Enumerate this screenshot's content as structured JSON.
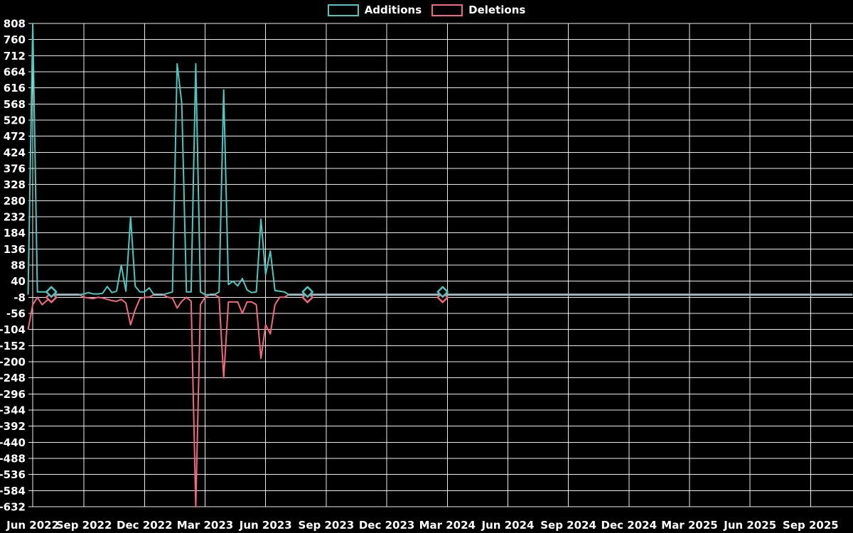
{
  "chart_data": {
    "type": "line",
    "title": "",
    "legend_position": "top",
    "grid": true,
    "grid_color": "rgba(255,255,255,0.92)",
    "overlap_line_color": "#9eb6bd",
    "background_color": "#000000",
    "y_axis": {
      "max": 808,
      "min": -632,
      "tick_step": 48,
      "tick_labels": [
        808,
        760,
        712,
        664,
        616,
        568,
        520,
        472,
        424,
        376,
        328,
        280,
        232,
        184,
        136,
        88,
        40,
        -8,
        -56,
        -104,
        -152,
        -200,
        -248,
        -296,
        -344,
        -392,
        -440,
        -488,
        -536,
        -584,
        -632
      ]
    },
    "x_axis": {
      "labels": [
        "Jun 2022",
        "Sep 2022",
        "Dec 2022",
        "Mar 2023",
        "Jun 2023",
        "Sep 2023",
        "Dec 2023",
        "Mar 2024",
        "Jun 2024",
        "Sep 2024",
        "Dec 2024",
        "Mar 2025",
        "Jun 2025",
        "Sep 2025"
      ],
      "label_weeks": [
        1,
        12,
        25,
        38,
        51,
        64,
        77,
        90,
        103,
        116,
        129,
        142,
        155,
        168
      ],
      "total_weeks": 178,
      "unit": "week"
    },
    "series": [
      {
        "name": "Additions",
        "color": "#4cc8c0"
      },
      {
        "name": "Deletions",
        "color": "#f4687f"
      }
    ],
    "sparse_weekly_values": {
      "0": [
        0,
        -104
      ],
      "1": [
        808,
        -30
      ],
      "2": [
        8,
        -8
      ],
      "3": [
        8,
        -30
      ],
      "4": [
        8,
        -18
      ],
      "5": [
        8,
        -8
      ],
      "12": [
        2,
        -8
      ],
      "13": [
        6,
        -10
      ],
      "14": [
        2,
        -12
      ],
      "15": [
        2,
        -8
      ],
      "16": [
        4,
        -10
      ],
      "17": [
        24,
        -14
      ],
      "18": [
        6,
        -18
      ],
      "19": [
        10,
        -20
      ],
      "20": [
        88,
        -14
      ],
      "21": [
        10,
        -25
      ],
      "22": [
        232,
        -90
      ],
      "23": [
        25,
        -45
      ],
      "24": [
        8,
        -12
      ],
      "25": [
        8,
        -8
      ],
      "26": [
        20,
        -8
      ],
      "30": [
        4,
        -8
      ],
      "31": [
        8,
        -10
      ],
      "32": [
        688,
        -40
      ],
      "33": [
        570,
        -20
      ],
      "34": [
        8,
        -8
      ],
      "35": [
        8,
        -20
      ],
      "36": [
        688,
        -632
      ],
      "37": [
        8,
        -30
      ],
      "38": [
        0,
        -8
      ],
      "41": [
        8,
        -8
      ],
      "42": [
        610,
        -248
      ],
      "43": [
        30,
        -22
      ],
      "44": [
        40,
        -22
      ],
      "45": [
        26,
        -22
      ],
      "46": [
        48,
        -56
      ],
      "47": [
        14,
        -22
      ],
      "48": [
        6,
        -22
      ],
      "49": [
        8,
        -30
      ],
      "50": [
        225,
        -190
      ],
      "51": [
        60,
        -90
      ],
      "52": [
        130,
        -117
      ],
      "53": [
        12,
        -30
      ],
      "54": [
        10,
        -8
      ],
      "55": [
        8,
        -8
      ]
    },
    "markers": [
      {
        "week": 5,
        "additions": 8,
        "deletions": -8
      },
      {
        "week": 60,
        "additions": 8,
        "deletions": -8
      },
      {
        "week": 89,
        "additions": 8,
        "deletions": -8
      }
    ]
  }
}
